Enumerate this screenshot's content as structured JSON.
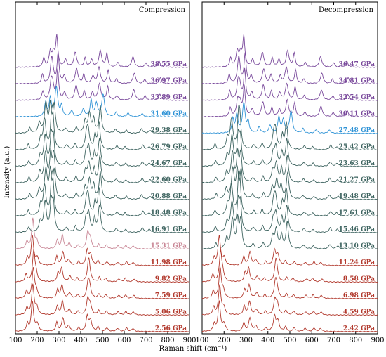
{
  "chart_data": {
    "type": "line",
    "xlabel": "Raman shift (cm⁻¹)",
    "ylabel": "Intensity (a.u.)",
    "xlim": [
      100,
      900
    ],
    "xticks": [
      100,
      200,
      300,
      400,
      500,
      600,
      700,
      800,
      900
    ],
    "colors": {
      "purple": "#7a4a9c",
      "blue": "#2f93d6",
      "teal": "#3e6460",
      "pink": "#c98796",
      "red": "#b23a2e"
    },
    "panels": [
      {
        "title": "Compression",
        "series": [
          {
            "name": "38.55 GPa",
            "color": "purple",
            "phase": "p4"
          },
          {
            "name": "36.97 GPa",
            "color": "purple",
            "phase": "p4"
          },
          {
            "name": "33.89 GPa",
            "color": "purple",
            "phase": "p4"
          },
          {
            "name": "31.60 GPa",
            "color": "blue",
            "phase": "p3"
          },
          {
            "name": "29.38 GPa",
            "color": "teal",
            "phase": "p2"
          },
          {
            "name": "26.79 GPa",
            "color": "teal",
            "phase": "p2"
          },
          {
            "name": "24.67 GPa",
            "color": "teal",
            "phase": "p2"
          },
          {
            "name": "22.60 GPa",
            "color": "teal",
            "phase": "p2"
          },
          {
            "name": "20.88 GPa",
            "color": "teal",
            "phase": "p2"
          },
          {
            "name": "18.48 GPa",
            "color": "teal",
            "phase": "p2"
          },
          {
            "name": "16.91 GPa",
            "color": "teal",
            "phase": "p2"
          },
          {
            "name": "15.31 GPa",
            "color": "pink",
            "phase": "p1"
          },
          {
            "name": "11.98 GPa",
            "color": "red",
            "phase": "p1"
          },
          {
            "name": "9.82 GPa",
            "color": "red",
            "phase": "p1"
          },
          {
            "name": "7.59 GPa",
            "color": "red",
            "phase": "p1"
          },
          {
            "name": "5.06 GPa",
            "color": "red",
            "phase": "p1"
          },
          {
            "name": "2.56 GPa",
            "color": "red",
            "phase": "p1"
          }
        ]
      },
      {
        "title": "Decompression",
        "series": [
          {
            "name": "36.47 GPa",
            "color": "purple",
            "phase": "p4"
          },
          {
            "name": "34.81 GPa",
            "color": "purple",
            "phase": "p4"
          },
          {
            "name": "32.54 GPa",
            "color": "purple",
            "phase": "p4"
          },
          {
            "name": "30.11 GPa",
            "color": "purple",
            "phase": "p4"
          },
          {
            "name": "27.48 GPa",
            "color": "blue",
            "phase": "p3"
          },
          {
            "name": "25.42 GPa",
            "color": "teal",
            "phase": "p2"
          },
          {
            "name": "23.63 GPa",
            "color": "teal",
            "phase": "p2"
          },
          {
            "name": "21.27 GPa",
            "color": "teal",
            "phase": "p2"
          },
          {
            "name": "19.48 GPa",
            "color": "teal",
            "phase": "p2"
          },
          {
            "name": "17.61 GPa",
            "color": "teal",
            "phase": "p2"
          },
          {
            "name": "15.46 GPa",
            "color": "teal",
            "phase": "p2"
          },
          {
            "name": "13.10 GPa",
            "color": "teal",
            "phase": "p2"
          },
          {
            "name": "11.24 GPa",
            "color": "red",
            "phase": "p1"
          },
          {
            "name": "8.58 GPa",
            "color": "red",
            "phase": "p1"
          },
          {
            "name": "6.98 GPa",
            "color": "red",
            "phase": "p1"
          },
          {
            "name": "4.59 GPa",
            "color": "red",
            "phase": "p1"
          },
          {
            "name": "2.42 GPa",
            "color": "red",
            "phase": "p1"
          }
        ]
      }
    ],
    "phase_peaks": {
      "p1": [
        [
          155,
          0.25
        ],
        [
          178,
          1.0
        ],
        [
          200,
          0.25
        ],
        [
          290,
          0.3
        ],
        [
          318,
          0.45
        ],
        [
          345,
          0.18
        ],
        [
          390,
          0.12
        ],
        [
          430,
          0.5
        ],
        [
          445,
          0.35
        ],
        [
          480,
          0.15
        ],
        [
          520,
          0.12
        ],
        [
          570,
          0.1
        ],
        [
          610,
          0.12
        ],
        [
          640,
          0.1
        ]
      ],
      "p2": [
        [
          165,
          0.18
        ],
        [
          210,
          0.35
        ],
        [
          240,
          1.0
        ],
        [
          260,
          0.9
        ],
        [
          278,
          0.95
        ],
        [
          330,
          0.15
        ],
        [
          380,
          0.2
        ],
        [
          420,
          0.4
        ],
        [
          440,
          0.65
        ],
        [
          460,
          0.45
        ],
        [
          490,
          0.9
        ],
        [
          560,
          0.12
        ],
        [
          610,
          0.1
        ],
        [
          680,
          0.15
        ],
        [
          720,
          0.1
        ]
      ],
      "p3": [
        [
          240,
          0.45
        ],
        [
          258,
          0.6
        ],
        [
          290,
          1.0
        ],
        [
          310,
          0.35
        ],
        [
          360,
          0.2
        ],
        [
          410,
          0.25
        ],
        [
          450,
          0.55
        ],
        [
          470,
          0.45
        ],
        [
          505,
          0.75
        ],
        [
          560,
          0.15
        ],
        [
          620,
          0.12
        ],
        [
          680,
          0.1
        ]
      ],
      "p4": [
        [
          230,
          0.3
        ],
        [
          260,
          0.5
        ],
        [
          275,
          0.45
        ],
        [
          290,
          1.0
        ],
        [
          330,
          0.25
        ],
        [
          375,
          0.5
        ],
        [
          420,
          0.3
        ],
        [
          450,
          0.25
        ],
        [
          490,
          0.55
        ],
        [
          520,
          0.45
        ],
        [
          570,
          0.15
        ],
        [
          640,
          0.35
        ],
        [
          700,
          0.15
        ],
        [
          760,
          0.2
        ]
      ]
    }
  }
}
